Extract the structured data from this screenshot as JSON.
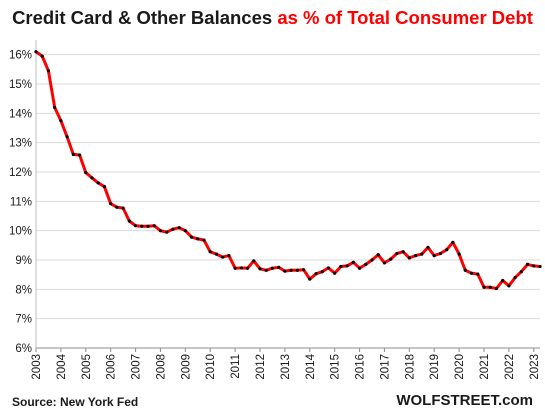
{
  "chart_data": {
    "type": "line",
    "title_part1": "Credit Card & Other Balances",
    "title_part2": "as % of Total Consumer Debt",
    "ylim": [
      6,
      16.5
    ],
    "y_ticks": [
      "6%",
      "7%",
      "8%",
      "9%",
      "10%",
      "11%",
      "12%",
      "13%",
      "14%",
      "15%",
      "16%"
    ],
    "x_ticks": [
      "2003",
      "2004",
      "2005",
      "2006",
      "2007",
      "2008",
      "2009",
      "2010",
      "2011",
      "2012",
      "2013",
      "2014",
      "2015",
      "2016",
      "2017",
      "2018",
      "2019",
      "2020",
      "2021",
      "2022",
      "2023"
    ],
    "grid": true,
    "colors": {
      "line": "#ff0000",
      "markers": "#000000",
      "grid": "#d9d9d9"
    },
    "x": [
      2003.0,
      2003.25,
      2003.5,
      2003.75,
      2004.0,
      2004.25,
      2004.5,
      2004.75,
      2005.0,
      2005.25,
      2005.5,
      2005.75,
      2006.0,
      2006.25,
      2006.5,
      2006.75,
      2007.0,
      2007.25,
      2007.5,
      2007.75,
      2008.0,
      2008.25,
      2008.5,
      2008.75,
      2009.0,
      2009.25,
      2009.5,
      2009.75,
      2010.0,
      2010.25,
      2010.5,
      2010.75,
      2011.0,
      2011.25,
      2011.5,
      2011.75,
      2012.0,
      2012.25,
      2012.5,
      2012.75,
      2013.0,
      2013.25,
      2013.5,
      2013.75,
      2014.0,
      2014.25,
      2014.5,
      2014.75,
      2015.0,
      2015.25,
      2015.5,
      2015.75,
      2016.0,
      2016.25,
      2016.5,
      2016.75,
      2017.0,
      2017.25,
      2017.5,
      2017.75,
      2018.0,
      2018.25,
      2018.5,
      2018.75,
      2019.0,
      2019.25,
      2019.5,
      2019.75,
      2020.0,
      2020.25,
      2020.5,
      2020.75,
      2021.0,
      2021.25,
      2021.5,
      2021.75,
      2022.0,
      2022.25,
      2022.5,
      2022.75,
      2023.0,
      2023.25
    ],
    "values": [
      16.1,
      15.95,
      15.45,
      14.2,
      13.75,
      13.2,
      12.6,
      12.58,
      11.98,
      11.8,
      11.63,
      11.5,
      10.92,
      10.8,
      10.77,
      10.33,
      10.17,
      10.15,
      10.15,
      10.17,
      10.0,
      9.95,
      10.05,
      10.1,
      10.0,
      9.78,
      9.72,
      9.68,
      9.28,
      9.2,
      9.1,
      9.15,
      8.72,
      8.73,
      8.72,
      8.97,
      8.7,
      8.65,
      8.72,
      8.75,
      8.62,
      8.65,
      8.65,
      8.67,
      8.35,
      8.53,
      8.6,
      8.73,
      8.55,
      8.78,
      8.8,
      8.92,
      8.72,
      8.85,
      9.0,
      9.18,
      8.9,
      9.03,
      9.22,
      9.28,
      9.07,
      9.15,
      9.2,
      9.43,
      9.15,
      9.22,
      9.35,
      9.6,
      9.2,
      8.65,
      8.55,
      8.52,
      8.07,
      8.07,
      8.03,
      8.3,
      8.12,
      8.4,
      8.6,
      8.85,
      8.8,
      8.78
    ]
  },
  "footer": {
    "source": "Source: New York Fed",
    "brand": "WOLFSTREET.com"
  }
}
